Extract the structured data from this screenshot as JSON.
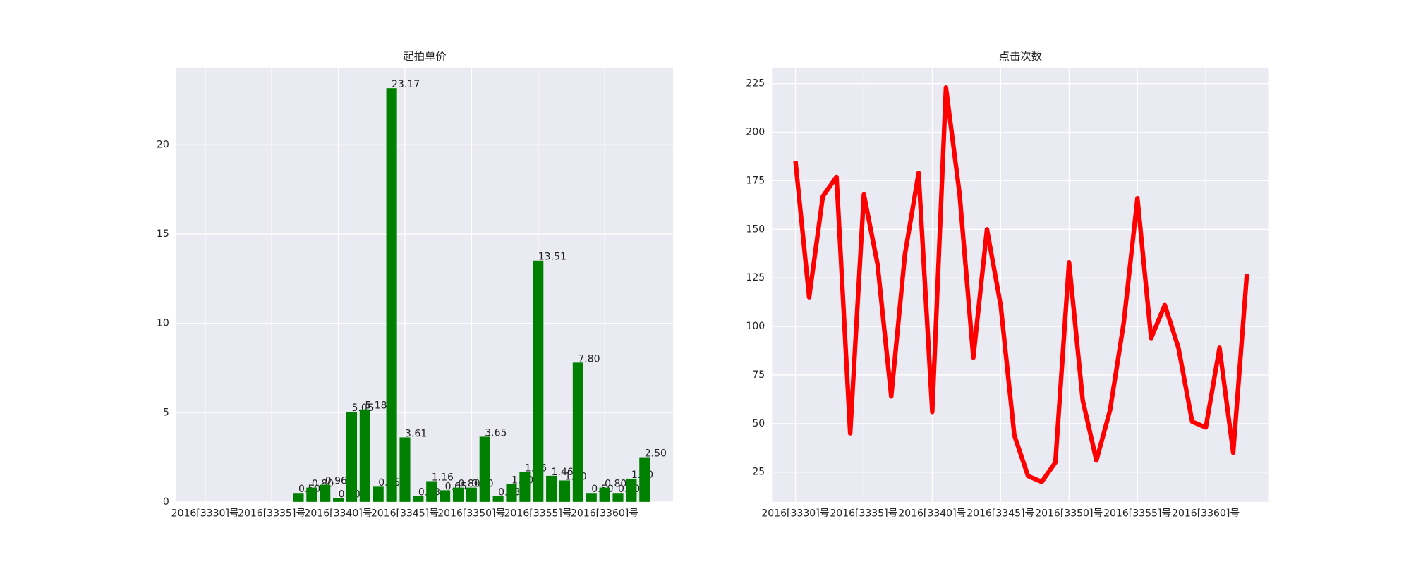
{
  "chart_data": [
    {
      "type": "bar",
      "title": "起拍单价",
      "categories": [
        "2016[3330]号",
        null,
        null,
        null,
        null,
        "2016[3335]号",
        null,
        null,
        null,
        null,
        "2016[3340]号",
        null,
        null,
        null,
        null,
        "2016[3345]号",
        null,
        null,
        null,
        null,
        "2016[3350]号",
        null,
        null,
        null,
        null,
        "2016[3355]号",
        null,
        null,
        null,
        null,
        "2016[3360]号",
        null,
        null,
        null
      ],
      "values": [
        null,
        null,
        null,
        null,
        null,
        null,
        null,
        0.5,
        0.8,
        0.96,
        0.2,
        5.05,
        5.18,
        0.85,
        23.17,
        3.61,
        0.33,
        1.16,
        0.65,
        0.8,
        0.8,
        3.65,
        0.33,
        1.0,
        1.66,
        13.51,
        1.46,
        1.2,
        7.8,
        0.5,
        0.8,
        0.5,
        1.3,
        2.5
      ],
      "value_labels": [
        null,
        null,
        null,
        null,
        null,
        null,
        null,
        "0.50",
        "0.80",
        "0.96",
        "0.20",
        "5.05",
        "5.18",
        "0.85",
        "23.17",
        "3.61",
        "0.33",
        "1.16",
        "0.65",
        "0.80",
        "0.80",
        "3.65",
        "0.33",
        "1.00",
        "1.66",
        "13.51",
        "1.46",
        "1.20",
        "7.80",
        "0.50",
        "0.80",
        "0.50",
        "1.30",
        "2.50"
      ],
      "color": "#008000",
      "ylim": [
        0,
        24.33
      ],
      "yticks": [
        0,
        5,
        10,
        15,
        20
      ],
      "grid": true
    },
    {
      "type": "line",
      "title": "点击次数",
      "categories": [
        "2016[3330]号",
        null,
        null,
        null,
        null,
        "2016[3335]号",
        null,
        null,
        null,
        null,
        "2016[3340]号",
        null,
        null,
        null,
        null,
        "2016[3345]号",
        null,
        null,
        null,
        null,
        "2016[3350]号",
        null,
        null,
        null,
        null,
        "2016[3355]号",
        null,
        null,
        null,
        null,
        "2016[3360]号",
        null,
        null,
        null
      ],
      "values": [
        185,
        115,
        167,
        177,
        45,
        168,
        132,
        64,
        137,
        179,
        56,
        223,
        168,
        84,
        150,
        111,
        44,
        23,
        20,
        30,
        133,
        62,
        31,
        57,
        102,
        166,
        94,
        111,
        89,
        51,
        48,
        89,
        35,
        127
      ],
      "color": "#ff0000",
      "ylim": [
        9.7,
        233.3
      ],
      "yticks": [
        25,
        50,
        75,
        100,
        125,
        150,
        175,
        200,
        225
      ],
      "grid": true
    }
  ]
}
